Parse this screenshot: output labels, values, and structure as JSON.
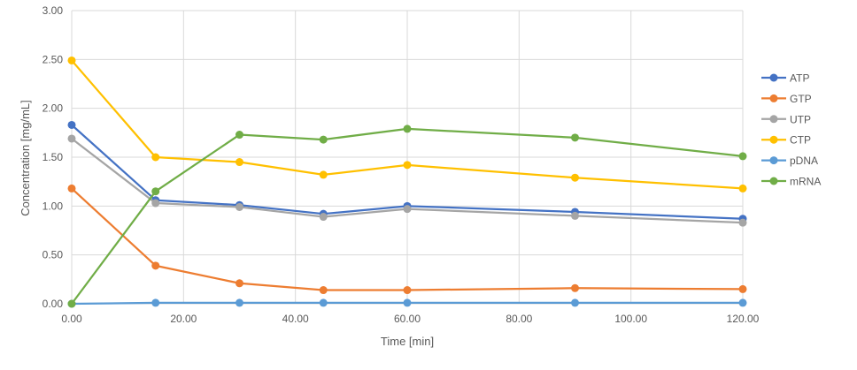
{
  "chart_data": {
    "type": "line",
    "title": "",
    "xlabel": "Time [min]",
    "ylabel": "Concentration [mg/mL]",
    "xlim": [
      0,
      120
    ],
    "ylim": [
      0,
      3
    ],
    "x_ticks": [
      0,
      20,
      40,
      60,
      80,
      100,
      120
    ],
    "x_tick_labels": [
      "0.00",
      "20.00",
      "40.00",
      "60.00",
      "80.00",
      "100.00",
      "120.00"
    ],
    "y_ticks": [
      0,
      0.5,
      1,
      1.5,
      2,
      2.5,
      3
    ],
    "y_tick_labels": [
      "0.00",
      "0.50",
      "1.00",
      "1.50",
      "2.00",
      "2.50",
      "3.00"
    ],
    "grid": true,
    "legend_position": "right",
    "x": [
      0,
      15,
      30,
      45,
      60,
      90,
      120
    ],
    "series": [
      {
        "name": "ATP",
        "color": "#4472c4",
        "values": [
          1.83,
          1.06,
          1.01,
          0.92,
          1.0,
          0.94,
          0.87
        ]
      },
      {
        "name": "GTP",
        "color": "#ed7d31",
        "values": [
          1.18,
          0.39,
          0.21,
          0.14,
          0.14,
          0.16,
          0.15
        ]
      },
      {
        "name": "UTP",
        "color": "#a5a5a5",
        "values": [
          1.69,
          1.03,
          0.99,
          0.89,
          0.97,
          0.9,
          0.83
        ]
      },
      {
        "name": "CTP",
        "color": "#ffc000",
        "values": [
          2.49,
          1.5,
          1.45,
          1.32,
          1.42,
          1.29,
          1.18
        ]
      },
      {
        "name": "pDNA",
        "color": "#5b9bd5",
        "values": [
          0.0,
          0.01,
          0.01,
          0.01,
          0.01,
          0.01,
          0.01
        ]
      },
      {
        "name": "mRNA",
        "color": "#70ad47",
        "values": [
          0.0,
          1.15,
          1.73,
          1.68,
          1.79,
          1.7,
          1.51
        ]
      }
    ]
  }
}
